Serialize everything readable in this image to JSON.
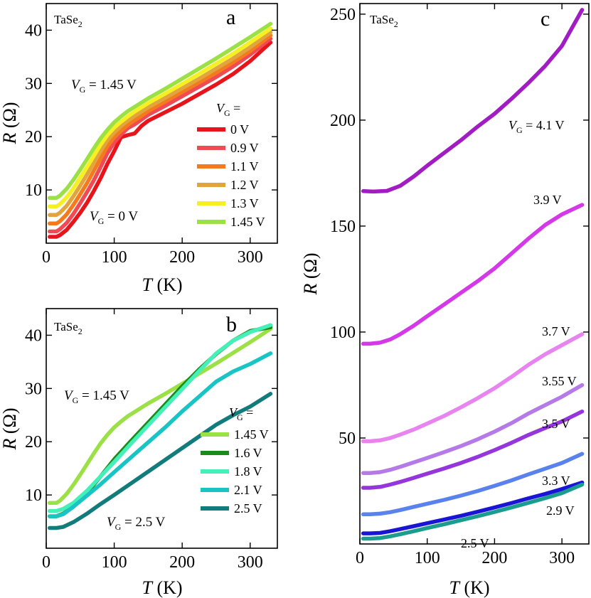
{
  "colors": {
    "0 V": "#e8141c",
    "0.9 V": "#f04a55",
    "1.1 V": "#f47a1e",
    "1.2 V": "#e2a53e",
    "1.3 V": "#f6ef22",
    "1.45 V": "#9be044",
    "1.6 V": "#1a8a1a",
    "1.8 V": "#44f0b8",
    "2.1 V": "#18c4c4",
    "2.5 V": "#127c7c",
    "4.1 V": "#a21cc4",
    "3.9 V": "#d438e8",
    "3.7 V": "#e884ef",
    "3.55 V": "#b67ae8",
    "3.5 V": "#9436dc",
    "3.3 V": "#5a82ec",
    "2.9 V": "#1a14d6",
    "2.5 V c": "#1a9c8e"
  },
  "chart_data": [
    {
      "panel": "a",
      "type": "line",
      "material": "TaSe2",
      "xlabel": "T (K)",
      "ylabel": "R (Ω)",
      "xlim": [
        0,
        340
      ],
      "ylim": [
        0,
        45
      ],
      "xticks": [
        0,
        100,
        200,
        300
      ],
      "yticks": [
        10,
        20,
        30,
        40
      ],
      "legend_title": "V_G =",
      "annotations": [
        {
          "text": "V_G = 1.45 V",
          "color": "#9be044",
          "x": 5,
          "y": 34.5
        },
        {
          "text": "V_G = 0 V",
          "color": "#e8141c",
          "x": 32,
          "y": 4.5
        }
      ],
      "series": [
        {
          "name": "0 V",
          "x": [
            5,
            15,
            20,
            30,
            40,
            50,
            60,
            70,
            80,
            90,
            100,
            110,
            120,
            130,
            140,
            150,
            175,
            200,
            225,
            250,
            275,
            300,
            330
          ],
          "y": [
            1.2,
            1.2,
            1.5,
            2.5,
            4.0,
            5.7,
            7.6,
            9.8,
            12.2,
            14.9,
            17.3,
            19.9,
            20.3,
            20.6,
            22.0,
            23.0,
            24.6,
            26.2,
            28.0,
            29.8,
            31.8,
            34.2,
            37.7
          ]
        },
        {
          "name": "0.9 V",
          "x": [
            5,
            15,
            20,
            30,
            40,
            50,
            60,
            70,
            80,
            90,
            100,
            110,
            120,
            130,
            140,
            150,
            175,
            200,
            225,
            250,
            275,
            300,
            330
          ],
          "y": [
            2.2,
            2.2,
            2.6,
            3.8,
            5.5,
            7.5,
            9.6,
            11.8,
            14.3,
            16.9,
            18.9,
            20.4,
            21.6,
            22.3,
            23.2,
            24.1,
            25.8,
            27.6,
            29.4,
            31.2,
            33.2,
            35.4,
            38.4
          ]
        },
        {
          "name": "1.1 V",
          "x": [
            5,
            15,
            20,
            30,
            40,
            50,
            60,
            70,
            80,
            90,
            100,
            110,
            120,
            130,
            140,
            150,
            175,
            200,
            225,
            250,
            275,
            300,
            330
          ],
          "y": [
            3.7,
            3.7,
            4.1,
            5.4,
            7.2,
            9.2,
            11.3,
            13.6,
            15.9,
            18.2,
            19.9,
            21.1,
            22.2,
            23.1,
            23.9,
            24.8,
            26.6,
            28.4,
            30.2,
            32.0,
            34.0,
            36.1,
            39.0
          ]
        },
        {
          "name": "1.2 V",
          "x": [
            5,
            15,
            20,
            30,
            40,
            50,
            60,
            70,
            80,
            90,
            100,
            110,
            120,
            130,
            140,
            150,
            175,
            200,
            225,
            250,
            275,
            300,
            330
          ],
          "y": [
            5.3,
            5.3,
            5.7,
            7.0,
            8.8,
            10.8,
            12.9,
            15.1,
            17.3,
            19.3,
            20.8,
            22.0,
            23.0,
            23.9,
            24.7,
            25.5,
            27.3,
            29.1,
            30.9,
            32.8,
            34.7,
            36.8,
            39.6
          ]
        },
        {
          "name": "1.3 V",
          "x": [
            5,
            15,
            20,
            30,
            40,
            50,
            60,
            70,
            80,
            90,
            100,
            110,
            120,
            130,
            140,
            150,
            175,
            200,
            225,
            250,
            275,
            300,
            330
          ],
          "y": [
            6.9,
            6.9,
            7.3,
            8.6,
            10.3,
            12.3,
            14.3,
            16.4,
            18.5,
            20.3,
            21.7,
            22.8,
            23.8,
            24.7,
            25.5,
            26.3,
            28.1,
            29.9,
            31.8,
            33.7,
            35.6,
            37.7,
            40.3
          ]
        },
        {
          "name": "1.45 V",
          "x": [
            5,
            15,
            20,
            30,
            40,
            50,
            60,
            70,
            80,
            90,
            100,
            110,
            120,
            130,
            140,
            150,
            175,
            200,
            225,
            250,
            275,
            300,
            330
          ],
          "y": [
            8.5,
            8.5,
            8.9,
            10.2,
            11.9,
            13.8,
            15.8,
            17.8,
            19.7,
            21.3,
            22.7,
            23.8,
            24.8,
            25.6,
            26.4,
            27.2,
            29.0,
            30.9,
            32.8,
            34.7,
            36.7,
            38.7,
            41.2
          ]
        }
      ]
    },
    {
      "panel": "b",
      "type": "line",
      "material": "TaSe2",
      "xlabel": "T (K)",
      "ylabel": "R (Ω)",
      "xlim": [
        0,
        340
      ],
      "ylim": [
        0,
        45
      ],
      "xticks": [
        0,
        100,
        200,
        300
      ],
      "yticks": [
        10,
        20,
        30,
        40
      ],
      "legend_title": "V_G =",
      "annotations": [
        {
          "text": "V_G = 1.45 V",
          "color": "#9be044",
          "x": 25,
          "y": 31.5
        },
        {
          "text": "V_G = 2.5 V",
          "color": "#127c7c",
          "x": 85,
          "y": 6.5
        }
      ],
      "series": [
        {
          "name": "1.45 V",
          "x": [
            5,
            15,
            20,
            30,
            40,
            50,
            60,
            70,
            80,
            90,
            100,
            110,
            120,
            130,
            140,
            150,
            175,
            200,
            225,
            250,
            275,
            300,
            330
          ],
          "y": [
            8.5,
            8.5,
            8.9,
            10.2,
            11.9,
            13.8,
            15.8,
            17.8,
            19.7,
            21.3,
            22.7,
            23.8,
            24.8,
            25.6,
            26.4,
            27.2,
            29.0,
            30.9,
            32.8,
            34.7,
            36.7,
            38.7,
            41.2
          ]
        },
        {
          "name": "1.6 V",
          "x": [
            5,
            15,
            25,
            40,
            60,
            80,
            100,
            125,
            150,
            175,
            200,
            225,
            250,
            275,
            300,
            330
          ],
          "y": [
            6.0,
            6.0,
            6.5,
            7.8,
            10.4,
            13.5,
            16.7,
            20.2,
            23.6,
            27.0,
            30.4,
            33.6,
            36.5,
            39.0,
            40.8,
            41.5
          ]
        },
        {
          "name": "1.8 V",
          "x": [
            5,
            15,
            25,
            40,
            60,
            80,
            100,
            125,
            150,
            175,
            200,
            225,
            250,
            275,
            300,
            330
          ],
          "y": [
            7.0,
            7.0,
            7.4,
            8.5,
            10.8,
            13.5,
            16.2,
            19.7,
            23.1,
            26.5,
            29.9,
            33.3,
            36.6,
            39.0,
            40.6,
            41.9
          ]
        },
        {
          "name": "2.1 V",
          "x": [
            5,
            15,
            25,
            40,
            60,
            80,
            100,
            125,
            150,
            175,
            200,
            225,
            250,
            275,
            300,
            330
          ],
          "y": [
            6.0,
            6.0,
            6.4,
            7.8,
            9.9,
            12.0,
            14.3,
            17.1,
            19.9,
            22.7,
            25.7,
            28.5,
            31.3,
            33.2,
            34.6,
            36.6
          ]
        },
        {
          "name": "2.5 V",
          "x": [
            5,
            15,
            25,
            40,
            60,
            80,
            100,
            125,
            150,
            175,
            200,
            225,
            250,
            275,
            300,
            330
          ],
          "y": [
            3.8,
            3.8,
            4.0,
            4.9,
            6.5,
            8.3,
            10.0,
            12.2,
            14.4,
            16.6,
            18.8,
            21.0,
            23.2,
            25.0,
            26.6,
            29.0
          ]
        }
      ]
    },
    {
      "panel": "c",
      "type": "line",
      "material": "TaSe2",
      "xlabel": "T (K)",
      "ylabel": "R (Ω)",
      "xlim": [
        0,
        340
      ],
      "ylim": [
        0,
        255
      ],
      "xticks": [
        0,
        100,
        200,
        300
      ],
      "yticks": [
        50,
        100,
        150,
        200,
        250
      ],
      "series": [
        {
          "name": "4.1 V",
          "label": "V_G = 4.1 V",
          "x": [
            5,
            20,
            40,
            60,
            80,
            100,
            125,
            150,
            175,
            200,
            225,
            250,
            275,
            300,
            330
          ],
          "y": [
            166.5,
            166.3,
            166.6,
            169.0,
            173.4,
            178.5,
            184.5,
            190.5,
            197.0,
            203.0,
            210.0,
            217.5,
            225.5,
            235.0,
            252.0
          ]
        },
        {
          "name": "3.9 V",
          "label": "3.9 V",
          "x": [
            5,
            15,
            30,
            45,
            60,
            80,
            100,
            125,
            150,
            175,
            200,
            225,
            250,
            275,
            300,
            330
          ],
          "y": [
            94.5,
            94.5,
            95.0,
            96.5,
            99.0,
            103.0,
            107.5,
            113.0,
            118.5,
            124.0,
            130.0,
            137.0,
            144.0,
            150.5,
            155.5,
            160.0
          ]
        },
        {
          "name": "3.7 V",
          "label": "3.7 V",
          "x": [
            5,
            15,
            30,
            45,
            60,
            80,
            100,
            125,
            150,
            175,
            200,
            225,
            250,
            275,
            300,
            330
          ],
          "y": [
            48.5,
            48.5,
            48.9,
            50.0,
            51.6,
            54.0,
            56.8,
            60.4,
            64.5,
            68.8,
            73.5,
            78.8,
            84.5,
            89.5,
            93.8,
            99.0
          ]
        },
        {
          "name": "3.55 V",
          "label": "3.55 V",
          "x": [
            5,
            15,
            30,
            45,
            60,
            80,
            100,
            125,
            150,
            175,
            200,
            225,
            250,
            275,
            300,
            330
          ],
          "y": [
            33.5,
            33.5,
            33.9,
            35.0,
            36.4,
            38.5,
            40.6,
            43.3,
            46.2,
            49.4,
            53.0,
            57.0,
            61.5,
            65.5,
            69.5,
            75.0
          ]
        },
        {
          "name": "3.5 V",
          "label": "3.5 V",
          "x": [
            5,
            15,
            30,
            45,
            60,
            80,
            100,
            125,
            150,
            175,
            200,
            225,
            250,
            275,
            300,
            330
          ],
          "y": [
            26.5,
            26.5,
            26.9,
            28.0,
            29.3,
            31.2,
            33.2,
            35.6,
            38.2,
            41.1,
            44.3,
            47.7,
            51.4,
            54.7,
            57.8,
            62.5
          ]
        },
        {
          "name": "3.3 V",
          "label": "3.3 V",
          "x": [
            5,
            15,
            30,
            45,
            60,
            80,
            100,
            125,
            150,
            175,
            200,
            225,
            250,
            275,
            300,
            330
          ],
          "y": [
            14.0,
            14.0,
            14.3,
            15.0,
            16.0,
            17.5,
            19.0,
            20.8,
            22.8,
            25.0,
            27.4,
            30.0,
            32.8,
            35.5,
            38.2,
            42.5
          ]
        },
        {
          "name": "2.9 V",
          "label": "2.9 V",
          "x": [
            5,
            15,
            30,
            45,
            60,
            80,
            100,
            125,
            150,
            175,
            200,
            225,
            250,
            275,
            300,
            330
          ],
          "y": [
            5.0,
            5.0,
            5.2,
            6.0,
            7.0,
            8.4,
            9.8,
            11.5,
            13.3,
            15.2,
            17.2,
            19.3,
            21.5,
            23.6,
            25.9,
            29.0
          ]
        },
        {
          "name": "2.5 V c",
          "label": "2.5 V",
          "x": [
            5,
            15,
            30,
            45,
            60,
            80,
            100,
            125,
            150,
            175,
            200,
            225,
            250,
            275,
            300,
            330
          ],
          "y": [
            2.5,
            2.5,
            2.8,
            3.6,
            4.6,
            6.0,
            7.5,
            9.3,
            11.2,
            13.1,
            15.1,
            17.2,
            19.4,
            21.6,
            24.0,
            28.0
          ]
        }
      ]
    }
  ]
}
